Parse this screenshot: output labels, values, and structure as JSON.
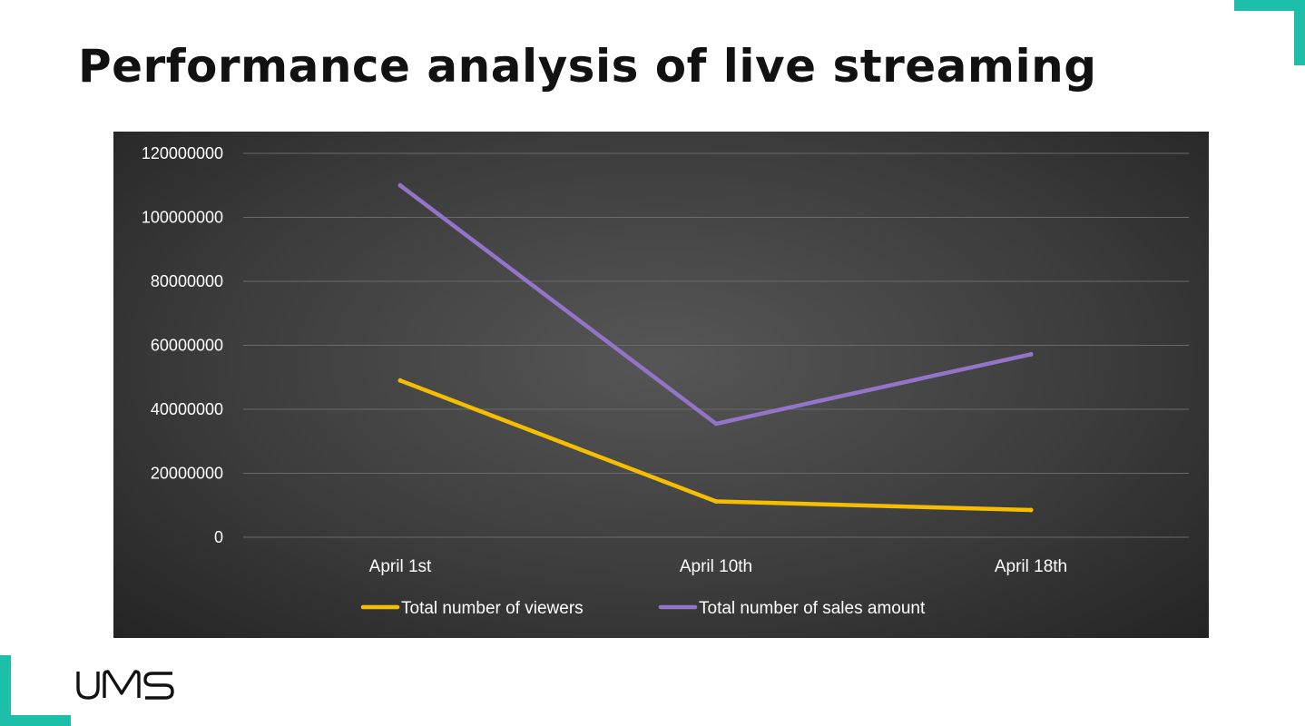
{
  "title": "Performance analysis of live streaming",
  "accent_color": "#1dbfa8",
  "logo_text": "UMS",
  "chart_data": {
    "type": "line",
    "categories": [
      "April 1st",
      "April 10th",
      "April 18th"
    ],
    "series": [
      {
        "name": "Total number of viewers",
        "color": "#f5be00",
        "values": [
          49000000,
          11200000,
          8500000
        ]
      },
      {
        "name": "Total number of sales amount",
        "color": "#9474c8",
        "values": [
          110000000,
          35500000,
          57200000
        ]
      }
    ],
    "ylim": [
      0,
      120000000
    ],
    "yticks": [
      "0",
      "20000000",
      "40000000",
      "60000000",
      "80000000",
      "100000000",
      "120000000"
    ],
    "grid": true,
    "legend": "bottom",
    "background": "#3d3d3d"
  }
}
